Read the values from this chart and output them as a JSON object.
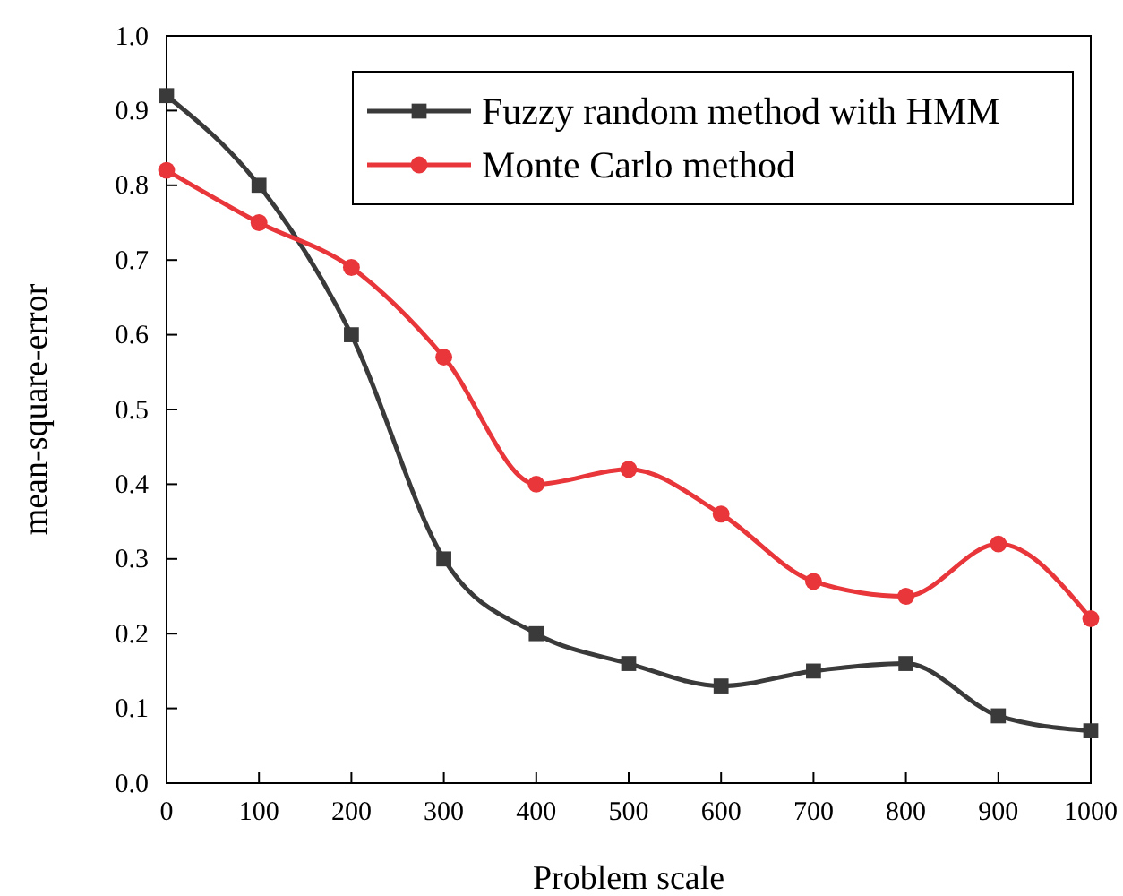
{
  "chart_data": {
    "type": "line",
    "xlabel": "Problem scale",
    "ylabel": "mean-square-error",
    "x": [
      0,
      100,
      200,
      300,
      400,
      500,
      600,
      700,
      800,
      900,
      1000
    ],
    "series": [
      {
        "name": "Fuzzy random method with HMM",
        "color": "#3a3a3a",
        "marker": "square",
        "values": [
          0.92,
          0.8,
          0.6,
          0.3,
          0.2,
          0.16,
          0.13,
          0.15,
          0.16,
          0.09,
          0.07
        ]
      },
      {
        "name": "Monte Carlo method",
        "color": "#e8363a",
        "marker": "circle",
        "values": [
          0.82,
          0.75,
          0.69,
          0.57,
          0.4,
          0.42,
          0.36,
          0.27,
          0.25,
          0.32,
          0.22
        ]
      }
    ],
    "xlim": [
      0,
      1000
    ],
    "xticks": [
      0,
      100,
      200,
      300,
      400,
      500,
      600,
      700,
      800,
      900,
      1000
    ],
    "ylim": [
      0,
      1
    ],
    "yticks": [
      {
        "value": 0,
        "label": "0.0"
      },
      {
        "value": 0.1,
        "label": "0.1"
      },
      {
        "value": 0.2,
        "label": "0.2"
      },
      {
        "value": 0.3,
        "label": "0.3"
      },
      {
        "value": 0.4,
        "label": "0.4"
      },
      {
        "value": 0.5,
        "label": "0.5"
      },
      {
        "value": 0.6,
        "label": "0.6"
      },
      {
        "value": 0.7,
        "label": "0.7"
      },
      {
        "value": 0.8,
        "label": "0.8"
      },
      {
        "value": 0.9,
        "label": "0.9"
      },
      {
        "value": 1,
        "label": "1.0"
      }
    ],
    "grid": false,
    "legend": "top right",
    "line_style": "solid"
  }
}
